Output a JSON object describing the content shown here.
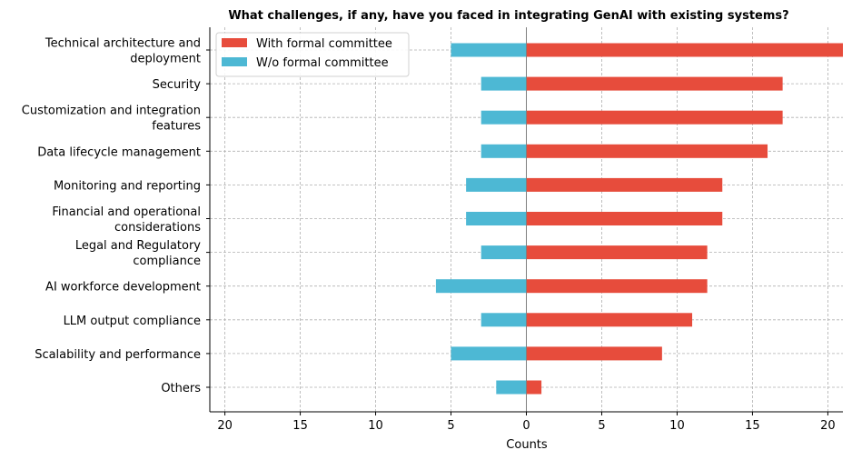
{
  "chart_data": {
    "type": "bar",
    "orientation": "horizontal-diverging",
    "title": "What challenges, if any, have you faced in integrating GenAI with existing systems?",
    "xlabel": "Counts",
    "ylabel": "",
    "xlim": [
      -21,
      21
    ],
    "xticks": [
      -20,
      -15,
      -10,
      -5,
      0,
      5,
      10,
      15,
      20
    ],
    "xtick_labels": [
      "20",
      "15",
      "10",
      "5",
      "0",
      "5",
      "10",
      "15",
      "20"
    ],
    "grid": true,
    "legend_position": "top-left",
    "categories": [
      [
        "Technical architecture and",
        "deployment"
      ],
      [
        "Security"
      ],
      [
        "Customization and integration",
        "features"
      ],
      [
        "Data lifecycle management"
      ],
      [
        "Monitoring and reporting"
      ],
      [
        "Financial and operational",
        "considerations"
      ],
      [
        "Legal and Regulatory",
        "compliance"
      ],
      [
        "AI workforce development"
      ],
      [
        "LLM output compliance"
      ],
      [
        "Scalability and performance"
      ],
      [
        "Others"
      ]
    ],
    "series": [
      {
        "name": "With formal committee",
        "color": "#e74c3c",
        "direction": "right",
        "values": [
          21,
          17,
          17,
          16,
          13,
          13,
          12,
          12,
          11,
          9,
          1
        ]
      },
      {
        "name": "W/o formal committee",
        "color": "#4db8d4",
        "direction": "left",
        "values": [
          5,
          3,
          3,
          3,
          4,
          4,
          3,
          6,
          3,
          5,
          2
        ]
      }
    ]
  }
}
